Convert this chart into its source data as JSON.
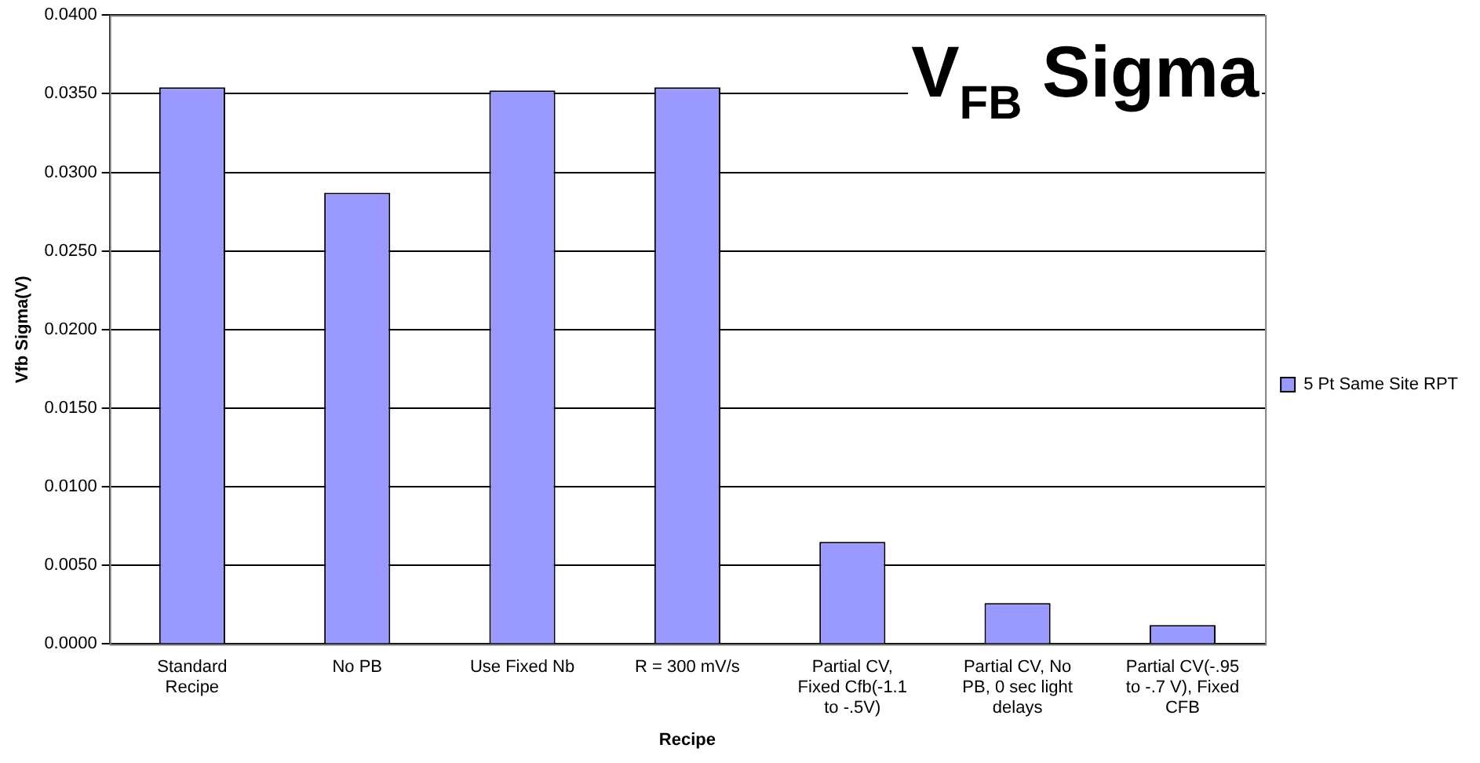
{
  "chart_data": {
    "type": "bar",
    "title": "V$_{FB}$ Sigma",
    "xlabel": "Recipe",
    "ylabel": "Vfb Sigma(V)",
    "categories": [
      "Standard Recipe",
      "No PB",
      "Use Fixed Nb",
      "R = 300 mV/s",
      "Partial CV, Fixed Cfb(-1.1 to -.5V)",
      "Partial CV, No PB, 0 sec light delays",
      "Partial CV(-.95 to -.7 V), Fixed CFB"
    ],
    "series": [
      {
        "name": "5 Pt Same Site RPT",
        "color": "#9999ff",
        "values": [
          0.0354,
          0.0287,
          0.0352,
          0.0354,
          0.0065,
          0.0026,
          0.0012
        ]
      }
    ],
    "ylim": [
      0,
      0.04
    ],
    "yticks": [
      {
        "value": 0,
        "label": "0.0000"
      },
      {
        "value": 0.005,
        "label": "0.0050"
      },
      {
        "value": 0.01,
        "label": "0.0100"
      },
      {
        "value": 0.015,
        "label": "0.0150"
      },
      {
        "value": 0.02,
        "label": "0.0200"
      },
      {
        "value": 0.025,
        "label": "0.0250"
      },
      {
        "value": 0.03,
        "label": "0.0300"
      },
      {
        "value": 0.035,
        "label": "0.0350"
      },
      {
        "value": 0.04,
        "label": "0.0400"
      }
    ],
    "grid": "y",
    "legend": "right"
  }
}
